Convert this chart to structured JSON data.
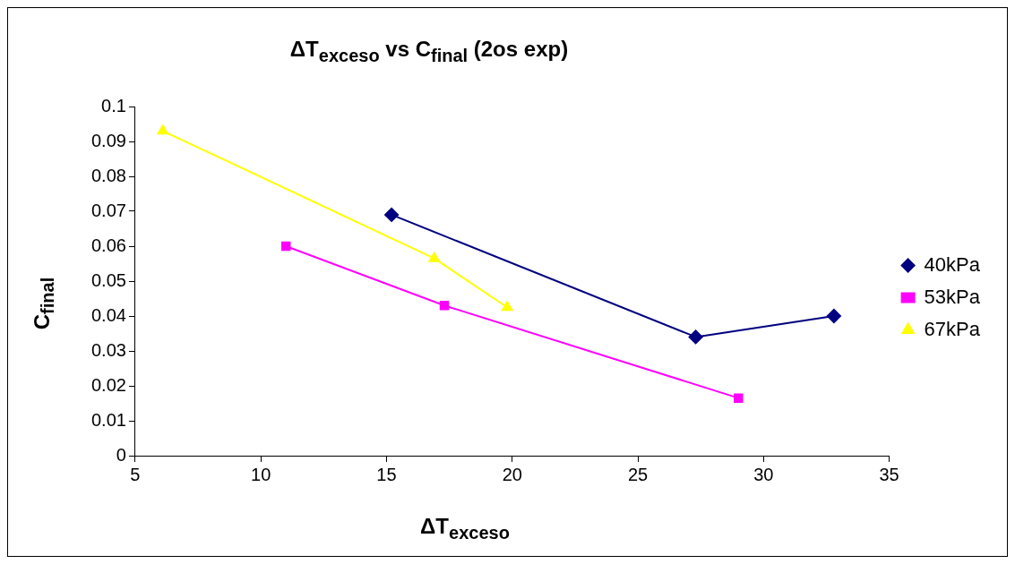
{
  "chart_data": {
    "type": "line",
    "title": "ΔT$_{exceso}$ vs C$_{final}$ (2os exp)",
    "xlabel": "ΔT$_{exceso}$",
    "ylabel": "C$_{final}$",
    "xlim": [
      5,
      35
    ],
    "xticks": [
      5,
      10,
      15,
      20,
      25,
      30,
      35
    ],
    "ylim": [
      0,
      0.1
    ],
    "yticks": [
      0,
      0.01,
      0.02,
      0.03,
      0.04,
      0.05,
      0.06,
      0.07,
      0.08,
      0.09,
      0.1
    ],
    "grid": false,
    "legend": "right",
    "series": [
      {
        "name": "40kPa",
        "color": "#000080",
        "marker": "diamond",
        "x": [
          15.2,
          27.3,
          32.8
        ],
        "values": [
          0.069,
          0.034,
          0.04
        ]
      },
      {
        "name": "53kPa",
        "color": "#ff00ff",
        "marker": "square",
        "x": [
          11.0,
          17.3,
          29.0
        ],
        "values": [
          0.06,
          0.043,
          0.0165
        ]
      },
      {
        "name": "67kPa",
        "color": "#ffff00",
        "marker": "triangle",
        "x": [
          6.1,
          16.9,
          19.8
        ],
        "values": [
          0.093,
          0.0565,
          0.0425
        ]
      }
    ]
  }
}
